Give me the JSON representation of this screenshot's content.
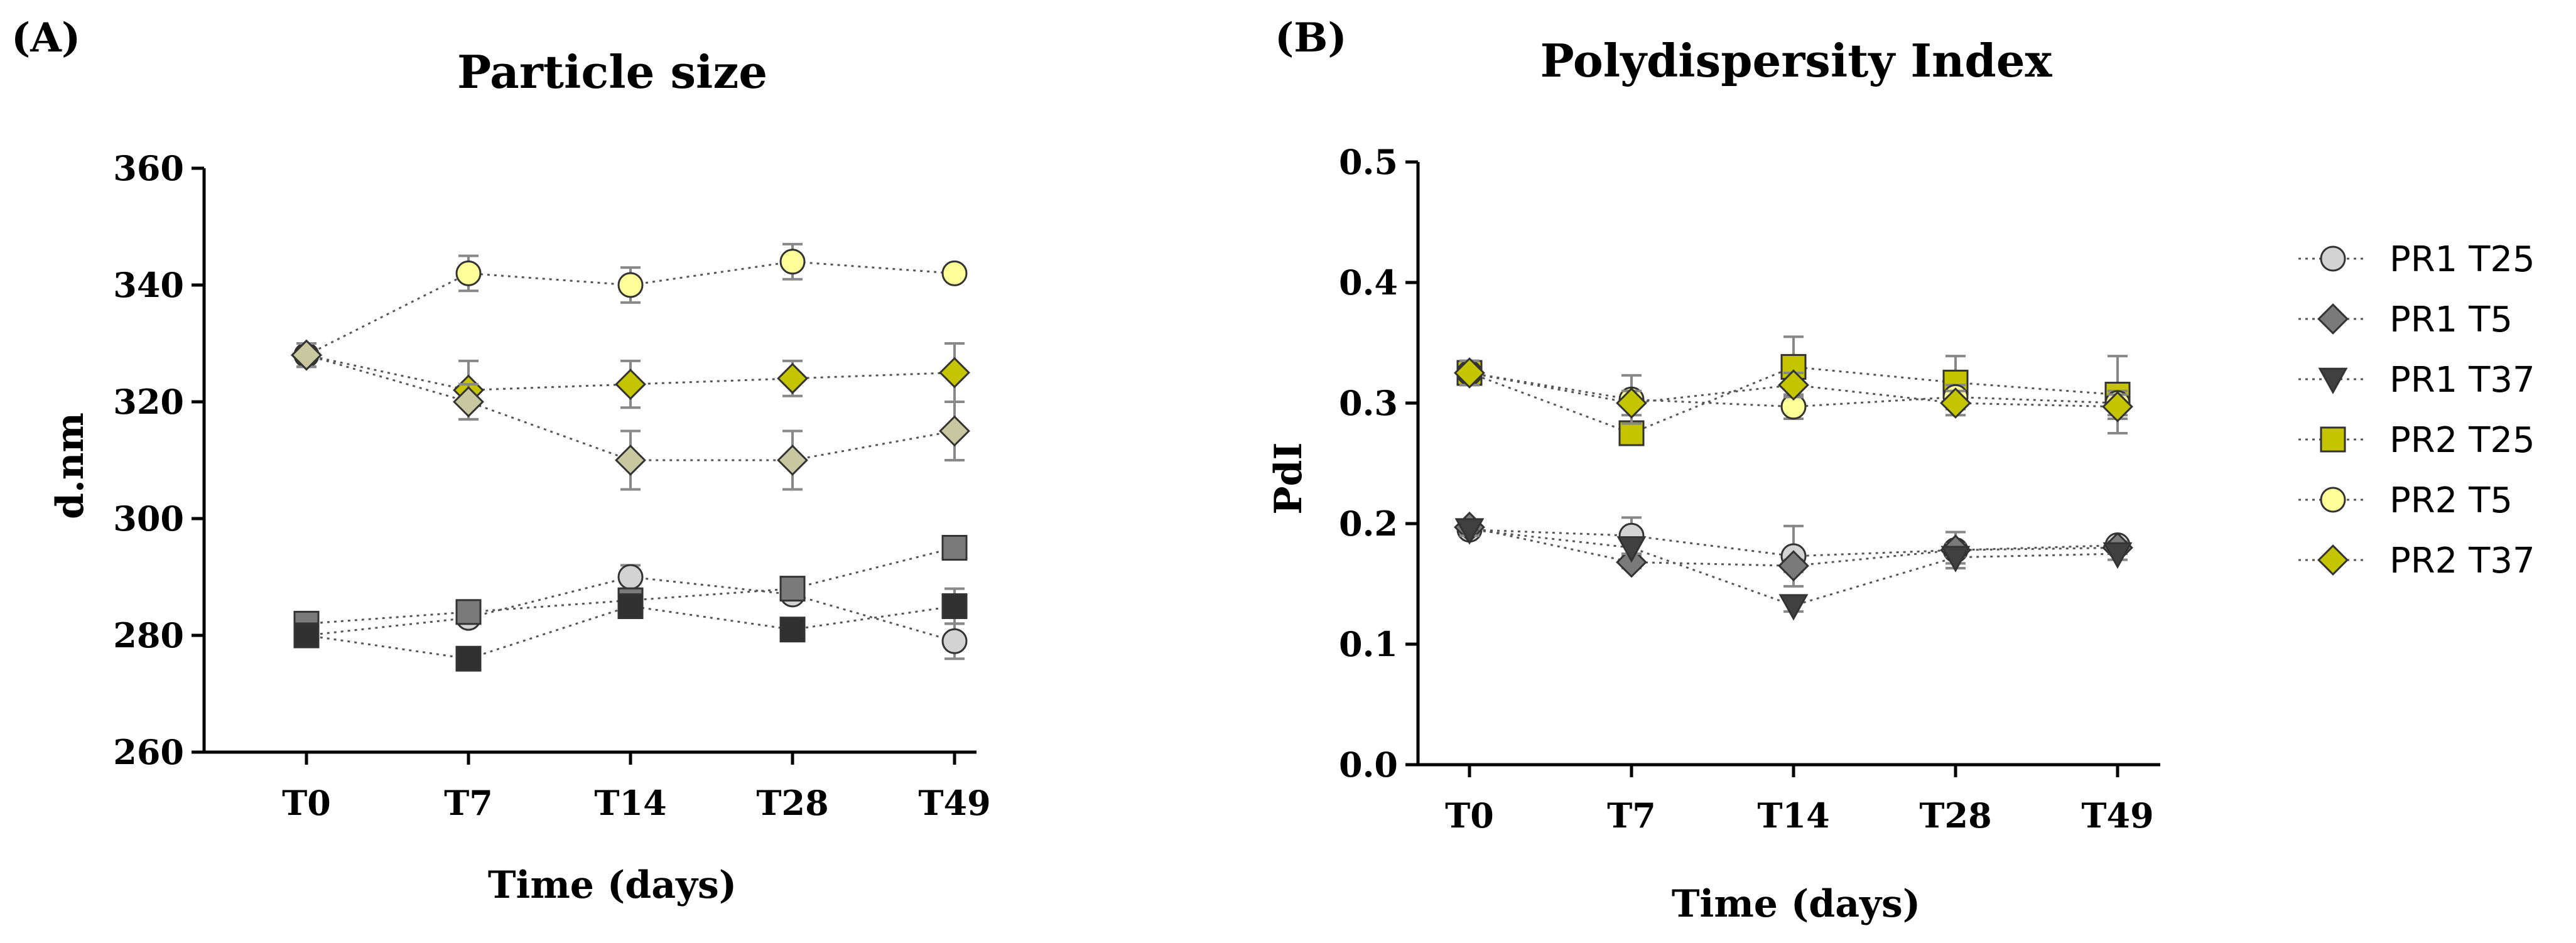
{
  "chart_data": [
    {
      "type": "line",
      "panel": "(A)",
      "title": "Particle size",
      "xlabel": "Time (days)",
      "ylabel": "d.nm",
      "categories": [
        "T0",
        "T7",
        "T14",
        "T28",
        "T49"
      ],
      "ylim": [
        260,
        360
      ],
      "yticks": [
        "260",
        "280",
        "300",
        "320",
        "340",
        "360"
      ],
      "grid": false,
      "legend": "right",
      "series": [
        {
          "name": "PR1 T25",
          "values": [
            280,
            283,
            290,
            287,
            279
          ],
          "errors": [
            0,
            0,
            2,
            0,
            3
          ],
          "color": "#d3d3d3",
          "marker": "circle"
        },
        {
          "name": "PR1 T5",
          "values": [
            282,
            284,
            286,
            288,
            295
          ],
          "errors": [
            0,
            0,
            2,
            0,
            0
          ],
          "color": "#7a7a7a",
          "marker": "square"
        },
        {
          "name": "PR1 T37",
          "values": [
            280,
            276,
            285,
            281,
            285
          ],
          "errors": [
            0,
            0,
            2,
            0,
            3
          ],
          "color": "#303030",
          "marker": "square"
        },
        {
          "name": "PR2 T25",
          "values": [
            328,
            322,
            323,
            324,
            325
          ],
          "errors": [
            2,
            5,
            4,
            3,
            5
          ],
          "color": "#c4c400",
          "marker": "diamond"
        },
        {
          "name": "PR2 T5",
          "values": [
            328,
            342,
            340,
            344,
            342
          ],
          "errors": [
            2,
            3,
            3,
            3,
            1
          ],
          "color": "#ffff99",
          "marker": "circle"
        },
        {
          "name": "PR2 T37",
          "values": [
            328,
            320,
            310,
            310,
            315
          ],
          "errors": [
            2,
            3,
            5,
            5,
            5
          ],
          "color": "#c8c8a0",
          "marker": "diamond"
        }
      ]
    },
    {
      "type": "line",
      "panel": "(B)",
      "title": "Polydispersity Index",
      "xlabel": "Time (days)",
      "ylabel": "PdI",
      "categories": [
        "T0",
        "T7",
        "T14",
        "T28",
        "T49"
      ],
      "ylim": [
        0,
        0.5
      ],
      "yticks": [
        "0.0",
        "0.1",
        "0.2",
        "0.3",
        "0.4",
        "0.5"
      ],
      "grid": false,
      "legend": "right",
      "series": [
        {
          "name": "PR1 T25",
          "values": [
            0.195,
            0.19,
            0.173,
            0.178,
            0.182
          ],
          "errors": [
            0.005,
            0.015,
            0.025,
            0.015,
            0.005
          ],
          "color": "#d3d3d3",
          "marker": "circle"
        },
        {
          "name": "PR1 T5",
          "values": [
            0.197,
            0.168,
            0.165,
            0.178,
            0.18
          ],
          "errors": [
            0.005,
            0.005,
            0.005,
            0.005,
            0.005
          ],
          "color": "#7a7a7a",
          "marker": "diamond"
        },
        {
          "name": "PR1 T37",
          "values": [
            0.195,
            0.18,
            0.132,
            0.172,
            0.175
          ],
          "errors": [
            0.005,
            0.005,
            0.005,
            0.005,
            0.005
          ],
          "color": "#404040",
          "marker": "triangle-down"
        },
        {
          "name": "PR2 T25",
          "values": [
            0.325,
            0.275,
            0.33,
            0.317,
            0.307
          ],
          "errors": [
            0.01,
            0.005,
            0.025,
            0.022,
            0.032
          ],
          "color": "#c4c400",
          "marker": "square"
        },
        {
          "name": "PR2 T5",
          "values": [
            0.325,
            0.303,
            0.297,
            0.305,
            0.3
          ],
          "errors": [
            0.01,
            0.02,
            0.01,
            0.01,
            0.01
          ],
          "color": "#ffff99",
          "marker": "circle"
        },
        {
          "name": "PR2 T37",
          "values": [
            0.325,
            0.3,
            0.315,
            0.3,
            0.297
          ],
          "errors": [
            0.01,
            0.01,
            0.01,
            0.01,
            0.01
          ],
          "color": "#c4c400",
          "marker": "diamond"
        }
      ]
    }
  ]
}
